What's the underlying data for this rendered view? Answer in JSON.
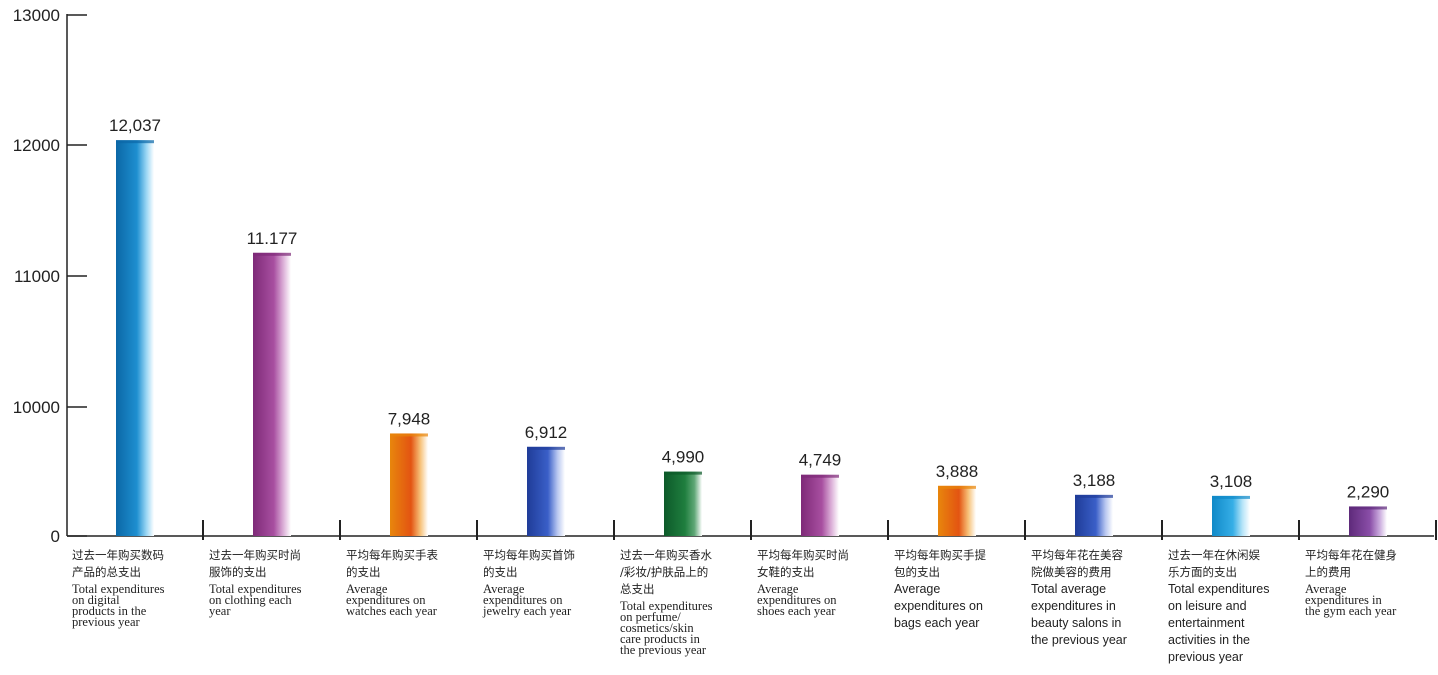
{
  "chart_data": {
    "type": "bar",
    "title": "",
    "xlabel": "",
    "ylabel": "",
    "y_ticks": [
      "13000",
      "12000",
      "11000",
      "10000",
      "0"
    ],
    "grid": false,
    "categories": [
      {
        "cn": [
          "过去一年购买数码",
          "产品的总支出"
        ],
        "en": [
          "Total expenditures",
          "on digital",
          "products in the",
          "previous year"
        ],
        "en_font": "serif"
      },
      {
        "cn": [
          "过去一年购买时尚",
          "服饰的支出"
        ],
        "en": [
          "Total expenditures",
          "on clothing each",
          "year"
        ],
        "en_font": "serif"
      },
      {
        "cn": [
          "平均每年购买手表",
          "的支出"
        ],
        "en": [
          "Average",
          "expenditures on",
          "watches each year"
        ],
        "en_font": "serif"
      },
      {
        "cn": [
          "平均每年购买首饰",
          "的支出"
        ],
        "en": [
          "Average",
          "expenditures on",
          "jewelry each year"
        ],
        "en_font": "serif"
      },
      {
        "cn": [
          "过去一年购买香水",
          "/彩妆/护肤品上的",
          "总支出"
        ],
        "en": [
          "Total expenditures",
          "on perfume/",
          "cosmetics/skin",
          "care products in",
          "the previous year"
        ],
        "en_font": "serif"
      },
      {
        "cn": [
          "平均每年购买时尚",
          "女鞋的支出"
        ],
        "en": [
          "Average",
          "expenditures on",
          "shoes each year"
        ],
        "en_font": "serif"
      },
      {
        "cn": [
          "平均每年购买手提",
          "包的支出"
        ],
        "en": [
          "Average",
          "expenditures on",
          "bags each year"
        ],
        "en_font": "sans"
      },
      {
        "cn": [
          "平均每年花在美容",
          "院做美容的费用"
        ],
        "en": [
          "Total average",
          "expenditures in",
          "beauty salons in",
          "the previous year"
        ],
        "en_font": "sans"
      },
      {
        "cn": [
          "过去一年在休闲娱",
          "乐方面的支出"
        ],
        "en": [
          "Total expenditures",
          "on leisure and",
          "entertainment",
          "activities in the",
          "previous year"
        ],
        "en_font": "sans"
      },
      {
        "cn": [
          "平均每年花在健身",
          "上的费用"
        ],
        "en": [
          "Average",
          "expenditures in",
          "the gym each year"
        ],
        "en_font": "serif"
      }
    ],
    "values": [
      12037,
      11177,
      7948,
      6912,
      4990,
      4749,
      3888,
      3188,
      3108,
      2290
    ],
    "value_labels": [
      "12,037",
      "11.177",
      "7,948",
      "6,912",
      "4,990",
      "4,749",
      "3,888",
      "3,188",
      "3,108",
      "2,290"
    ],
    "bar_styles": [
      "blue",
      "magenta",
      "orange",
      "royal",
      "green",
      "magenta",
      "orange",
      "royal",
      "cyan",
      "purple"
    ],
    "colors": {
      "blue": [
        "#0b67a6",
        "#1e8fd0",
        "#9ad6f4"
      ],
      "magenta": [
        "#7e2a78",
        "#a84fa0",
        "#dcb0d8"
      ],
      "orange": [
        "#e8860c",
        "#e35412",
        "#f7c27a"
      ],
      "royal": [
        "#1f3c98",
        "#3a5fc8",
        "#b7c6f0"
      ],
      "green": [
        "#0d5a2a",
        "#1f7e3e",
        "#5fa776"
      ],
      "cyan": [
        "#1089c8",
        "#36aee6",
        "#b5e4f8"
      ],
      "purple": [
        "#5e2a7a",
        "#8a4ea8",
        "#c8a8dc"
      ]
    }
  }
}
